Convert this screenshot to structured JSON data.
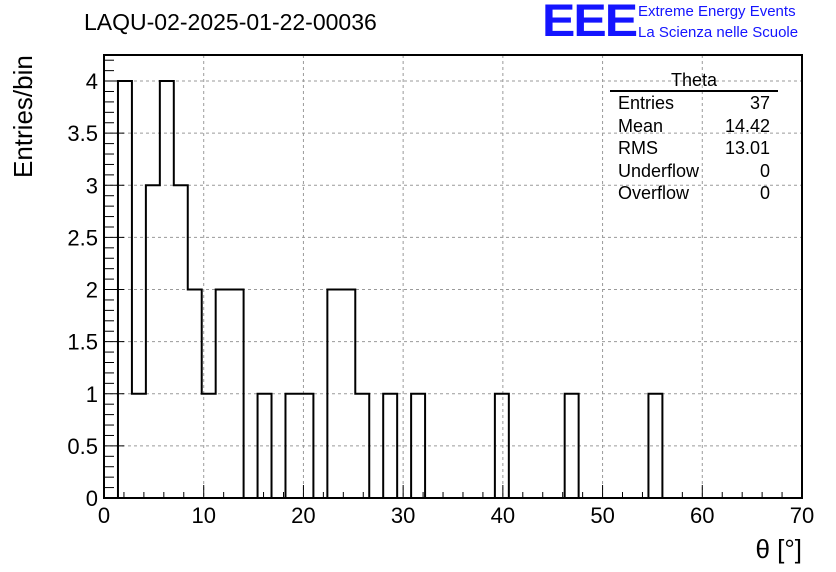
{
  "header": {
    "title": "LAQU-02-2025-01-22-00036",
    "logo_text": "EEE",
    "org_line1": "Extreme Energy Events",
    "org_line2": "La Scienza nelle Scuole",
    "logo_color": "#1414ff"
  },
  "stats": {
    "title": "Theta",
    "rows": [
      {
        "label": "Entries",
        "value": "37"
      },
      {
        "label": "Mean",
        "value": "14.42"
      },
      {
        "label": "RMS",
        "value": "13.01"
      },
      {
        "label": "Underflow",
        "value": "0"
      },
      {
        "label": "Overflow",
        "value": "0"
      }
    ]
  },
  "chart_data": {
    "type": "bar",
    "style": "step-histogram",
    "title": "LAQU-02-2025-01-22-00036",
    "xlabel": "θ [°]",
    "ylabel": "Entries/bin",
    "xlim": [
      0,
      70
    ],
    "ylim": [
      0,
      4.25
    ],
    "grid": true,
    "bin_width": 1.4,
    "bin_edges_start": 1.4,
    "values": [
      4,
      1,
      3,
      4,
      3,
      2,
      1,
      2,
      2,
      0,
      1,
      0,
      1,
      1,
      0,
      2,
      2,
      1,
      0,
      1,
      0,
      1,
      0,
      0,
      0,
      0,
      0,
      1,
      0,
      0,
      0,
      0,
      1,
      0,
      0,
      0,
      0,
      0,
      1
    ],
    "x_ticks": [
      "0",
      "10",
      "20",
      "30",
      "40",
      "50",
      "60",
      "70"
    ],
    "y_ticks": [
      "0",
      "0.5",
      "1",
      "1.5",
      "2",
      "2.5",
      "3",
      "3.5",
      "4"
    ]
  }
}
